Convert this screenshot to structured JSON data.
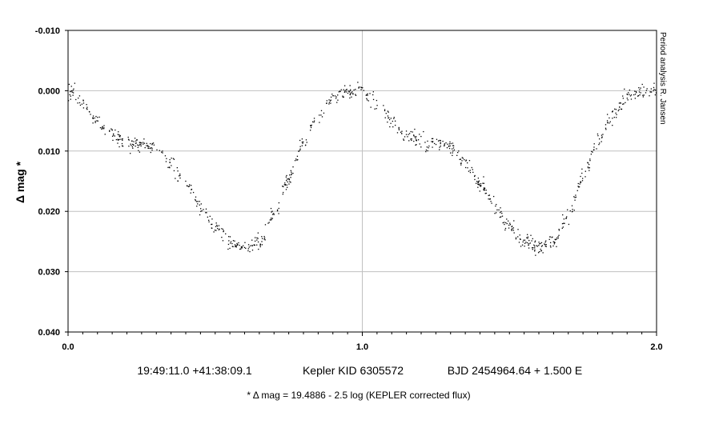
{
  "chart_data": {
    "type": "scatter",
    "ylabel": "Δ mag *",
    "xlim": [
      0.0,
      2.0
    ],
    "ylim": [
      -0.01,
      0.04
    ],
    "y_inverted": true,
    "x_ticks": [
      "0.0",
      "1.0",
      "2.0"
    ],
    "y_ticks": [
      "-0.010",
      "0.000",
      "0.010",
      "0.020",
      "0.030",
      "0.040"
    ],
    "grid": true,
    "side_note": "Period analysis  R. Jansen",
    "caption_coords": "19:49:11.0 +41:38:09.1",
    "caption_id": "Kepler KID 6305572",
    "caption_ephemeris": "BJD 2454964.64 + 1.500 E",
    "footnote": "* Δ mag = 19.4886 - 2.5 log (KEPLER corrected flux)",
    "series": [
      {
        "color": "#000000",
        "curve_phase": [
          0.0,
          0.05,
          0.1,
          0.15,
          0.2,
          0.25,
          0.3,
          0.35,
          0.4,
          0.45,
          0.5,
          0.55,
          0.6,
          0.65,
          0.7,
          0.75,
          0.8,
          0.85,
          0.9,
          0.95,
          1.0
        ],
        "curve_mag": [
          0.0,
          0.002,
          0.005,
          0.0075,
          0.0085,
          0.0088,
          0.0095,
          0.012,
          0.0155,
          0.019,
          0.0225,
          0.025,
          0.026,
          0.025,
          0.0205,
          0.0145,
          0.0085,
          0.004,
          0.001,
          0.0003,
          0.0
        ],
        "points_per_cycle": 450,
        "scatter": 0.0006
      }
    ]
  }
}
